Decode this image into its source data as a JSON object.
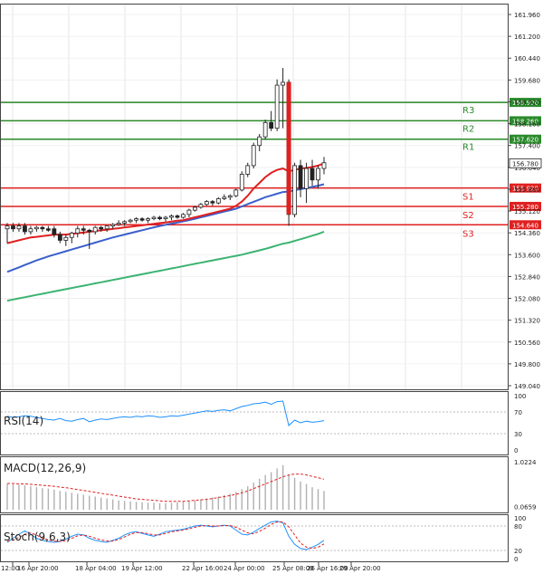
{
  "chart_data": {
    "type": "candlestick",
    "main": {
      "price_axis_ticks": [
        "161.960",
        "161.200",
        "160.440",
        "159.680",
        "158.920",
        "158.160",
        "157.400",
        "156.640",
        "155.880",
        "155.120",
        "154.360",
        "153.600",
        "152.840",
        "152.080",
        "151.320",
        "150.560",
        "149.800",
        "149.040"
      ],
      "current_price": "156.780",
      "levels": [
        {
          "name": "R3",
          "price": 158.9,
          "tag": "158.900",
          "color": "#2a8a2a"
        },
        {
          "name": "R2",
          "price": 158.26,
          "tag": "158.260",
          "color": "#2a8a2a"
        },
        {
          "name": "R1",
          "price": 157.62,
          "tag": "157.620",
          "color": "#2a8a2a"
        },
        {
          "name": "S1",
          "price": 155.92,
          "tag": "155.920",
          "color": "#e02020"
        },
        {
          "name": "S2",
          "price": 155.28,
          "tag": "155.280",
          "color": "#e02020"
        },
        {
          "name": "S3",
          "price": 154.64,
          "tag": "154.640",
          "color": "#e02020"
        }
      ],
      "candles": [
        [
          154.5,
          154.7,
          154.0,
          154.6
        ],
        [
          154.6,
          154.7,
          154.4,
          154.5
        ],
        [
          154.5,
          154.7,
          154.4,
          154.6
        ],
        [
          154.6,
          154.7,
          154.3,
          154.4
        ],
        [
          154.4,
          154.6,
          154.3,
          154.5
        ],
        [
          154.5,
          154.6,
          154.4,
          154.55
        ],
        [
          154.55,
          154.6,
          154.4,
          154.5
        ],
        [
          154.5,
          154.6,
          154.4,
          154.45
        ],
        [
          154.5,
          154.6,
          154.2,
          154.3
        ],
        [
          154.3,
          154.4,
          154.0,
          154.1
        ],
        [
          154.1,
          154.3,
          153.9,
          154.2
        ],
        [
          154.2,
          154.4,
          154.0,
          154.35
        ],
        [
          154.35,
          154.6,
          154.2,
          154.5
        ],
        [
          154.5,
          154.6,
          154.3,
          154.45
        ],
        [
          154.45,
          154.5,
          153.8,
          154.4
        ],
        [
          154.4,
          154.6,
          154.3,
          154.55
        ],
        [
          154.55,
          154.6,
          154.4,
          154.5
        ],
        [
          154.5,
          154.6,
          154.4,
          154.6
        ],
        [
          154.6,
          154.7,
          154.5,
          154.65
        ],
        [
          154.65,
          154.8,
          154.6,
          154.7
        ],
        [
          154.7,
          154.8,
          154.6,
          154.75
        ],
        [
          154.75,
          154.85,
          154.7,
          154.8
        ],
        [
          154.8,
          154.9,
          154.7,
          154.85
        ],
        [
          154.85,
          154.9,
          154.75,
          154.8
        ],
        [
          154.8,
          154.9,
          154.7,
          154.85
        ],
        [
          154.85,
          154.95,
          154.8,
          154.9
        ],
        [
          154.9,
          154.95,
          154.8,
          154.85
        ],
        [
          154.85,
          154.95,
          154.75,
          154.9
        ],
        [
          154.9,
          155.0,
          154.8,
          154.95
        ],
        [
          154.95,
          155.0,
          154.85,
          154.9
        ],
        [
          154.9,
          155.05,
          154.85,
          155.0
        ],
        [
          155.0,
          155.2,
          154.9,
          155.15
        ],
        [
          155.15,
          155.3,
          155.1,
          155.25
        ],
        [
          155.25,
          155.4,
          155.2,
          155.35
        ],
        [
          155.35,
          155.5,
          155.3,
          155.45
        ],
        [
          155.45,
          155.5,
          155.3,
          155.4
        ],
        [
          155.4,
          155.6,
          155.35,
          155.55
        ],
        [
          155.55,
          155.7,
          155.5,
          155.6
        ],
        [
          155.6,
          155.7,
          155.5,
          155.65
        ],
        [
          155.65,
          155.9,
          155.6,
          155.85
        ],
        [
          155.85,
          156.5,
          155.8,
          156.4
        ],
        [
          156.4,
          156.8,
          156.3,
          156.7
        ],
        [
          156.7,
          157.5,
          156.6,
          157.4
        ],
        [
          157.4,
          157.8,
          157.2,
          157.7
        ],
        [
          157.7,
          158.3,
          157.6,
          158.2
        ],
        [
          158.2,
          158.6,
          157.9,
          158.0
        ],
        [
          158.0,
          159.7,
          157.9,
          159.5
        ],
        [
          159.5,
          160.1,
          158.0,
          159.6
        ],
        [
          159.6,
          159.7,
          154.6,
          155.0
        ],
        [
          155.0,
          156.8,
          154.9,
          156.7
        ],
        [
          156.7,
          156.9,
          155.6,
          155.9
        ],
        [
          155.9,
          156.8,
          155.4,
          156.6
        ],
        [
          156.6,
          156.9,
          156.0,
          156.2
        ],
        [
          156.2,
          156.7,
          155.9,
          156.6
        ],
        [
          156.6,
          157.0,
          156.4,
          156.8
        ]
      ],
      "ma_red": [
        154.0,
        154.05,
        154.1,
        154.15,
        154.2,
        154.22,
        154.25,
        154.27,
        154.3,
        154.3,
        154.3,
        154.32,
        154.35,
        154.37,
        154.4,
        154.42,
        154.45,
        154.47,
        154.5,
        154.52,
        154.55,
        154.57,
        154.6,
        154.62,
        154.65,
        154.67,
        154.7,
        154.72,
        154.75,
        154.78,
        154.8,
        154.85,
        154.9,
        154.95,
        155.0,
        155.05,
        155.1,
        155.15,
        155.2,
        155.3,
        155.45,
        155.65,
        155.9,
        156.1,
        156.3,
        156.45,
        156.55,
        156.6,
        156.5,
        156.55,
        156.6,
        156.62,
        156.65,
        156.7,
        156.78
      ],
      "ma_blue": [
        153.0,
        153.08,
        153.16,
        153.24,
        153.32,
        153.4,
        153.47,
        153.54,
        153.6,
        153.66,
        153.72,
        153.78,
        153.84,
        153.9,
        153.96,
        154.02,
        154.08,
        154.14,
        154.2,
        154.25,
        154.3,
        154.35,
        154.4,
        154.45,
        154.5,
        154.55,
        154.6,
        154.64,
        154.68,
        154.72,
        154.76,
        154.8,
        154.85,
        154.9,
        154.95,
        155.0,
        155.05,
        155.1,
        155.15,
        155.2,
        155.28,
        155.36,
        155.44,
        155.52,
        155.6,
        155.66,
        155.72,
        155.78,
        155.8,
        155.84,
        155.88,
        155.92,
        155.96,
        156.0,
        156.05
      ],
      "ma_green": [
        152.0,
        152.04,
        152.08,
        152.12,
        152.16,
        152.2,
        152.24,
        152.28,
        152.32,
        152.36,
        152.4,
        152.44,
        152.48,
        152.52,
        152.56,
        152.6,
        152.64,
        152.68,
        152.72,
        152.76,
        152.8,
        152.84,
        152.88,
        152.92,
        152.96,
        153.0,
        153.04,
        153.08,
        153.12,
        153.16,
        153.2,
        153.24,
        153.28,
        153.32,
        153.36,
        153.4,
        153.44,
        153.48,
        153.52,
        153.56,
        153.6,
        153.65,
        153.7,
        153.75,
        153.8,
        153.86,
        153.92,
        153.98,
        154.02,
        154.08,
        154.14,
        154.2,
        154.26,
        154.32,
        154.4
      ],
      "time_labels": [
        "12:00",
        "16 Apr 20:00",
        "18 Apr 04:00",
        "19 Apr 12:00",
        "22 Apr 16:00",
        "24 Apr 00:00",
        "25 Apr 08:00",
        "26 Apr 16:00",
        "29 Apr 20:00"
      ]
    },
    "rsi": {
      "label": "RSI(14)",
      "ticks": [
        "100",
        "70",
        "30",
        "0"
      ],
      "values": [
        62,
        60,
        61,
        63,
        62,
        60,
        58,
        56,
        55,
        58,
        54,
        53,
        56,
        58,
        52,
        55,
        57,
        56,
        58,
        60,
        61,
        60,
        62,
        61,
        63,
        62,
        60,
        61,
        63,
        62,
        64,
        66,
        68,
        70,
        72,
        71,
        73,
        74,
        72,
        76,
        80,
        82,
        85,
        86,
        88,
        84,
        89,
        90,
        45,
        55,
        50,
        53,
        51,
        52,
        54
      ]
    },
    "macd": {
      "label": "MACD(12,26,9)",
      "ticks": [
        "1.0224",
        "0.0659"
      ],
      "histogram": [
        0.55,
        0.54,
        0.53,
        0.52,
        0.5,
        0.48,
        0.46,
        0.45,
        0.43,
        0.4,
        0.38,
        0.36,
        0.34,
        0.32,
        0.3,
        0.28,
        0.26,
        0.24,
        0.22,
        0.2,
        0.19,
        0.18,
        0.17,
        0.16,
        0.15,
        0.15,
        0.14,
        0.14,
        0.15,
        0.16,
        0.17,
        0.18,
        0.2,
        0.22,
        0.24,
        0.26,
        0.28,
        0.31,
        0.34,
        0.38,
        0.44,
        0.5,
        0.58,
        0.66,
        0.74,
        0.8,
        0.88,
        0.95,
        0.75,
        0.68,
        0.6,
        0.55,
        0.48,
        0.44,
        0.4
      ],
      "signal": [
        0.56,
        0.56,
        0.55,
        0.55,
        0.54,
        0.53,
        0.52,
        0.51,
        0.5,
        0.48,
        0.47,
        0.45,
        0.43,
        0.41,
        0.39,
        0.37,
        0.35,
        0.33,
        0.31,
        0.29,
        0.27,
        0.25,
        0.23,
        0.22,
        0.21,
        0.2,
        0.19,
        0.18,
        0.18,
        0.18,
        0.18,
        0.19,
        0.2,
        0.21,
        0.22,
        0.24,
        0.26,
        0.28,
        0.3,
        0.33,
        0.36,
        0.4,
        0.45,
        0.5,
        0.55,
        0.6,
        0.65,
        0.7,
        0.74,
        0.76,
        0.76,
        0.74,
        0.71,
        0.68,
        0.65
      ]
    },
    "stoch": {
      "label": "Stoch(9,6,3)",
      "ticks": [
        "100",
        "80",
        "20",
        "0"
      ],
      "main": [
        40,
        50,
        60,
        68,
        60,
        50,
        45,
        42,
        40,
        42,
        48,
        55,
        60,
        58,
        50,
        45,
        42,
        40,
        45,
        50,
        58,
        64,
        66,
        62,
        58,
        55,
        60,
        66,
        68,
        70,
        72,
        76,
        80,
        82,
        80,
        78,
        80,
        82,
        80,
        70,
        60,
        58,
        65,
        74,
        82,
        90,
        92,
        88,
        55,
        35,
        25,
        22,
        28,
        35,
        45
      ],
      "signal": [
        42,
        46,
        52,
        60,
        63,
        58,
        50,
        46,
        43,
        42,
        44,
        50,
        56,
        58,
        55,
        50,
        46,
        43,
        43,
        47,
        53,
        60,
        64,
        64,
        61,
        58,
        58,
        62,
        66,
        68,
        70,
        73,
        77,
        80,
        81,
        80,
        80,
        81,
        81,
        77,
        70,
        63,
        61,
        67,
        75,
        84,
        90,
        90,
        78,
        58,
        38,
        28,
        25,
        28,
        36
      ]
    }
  }
}
